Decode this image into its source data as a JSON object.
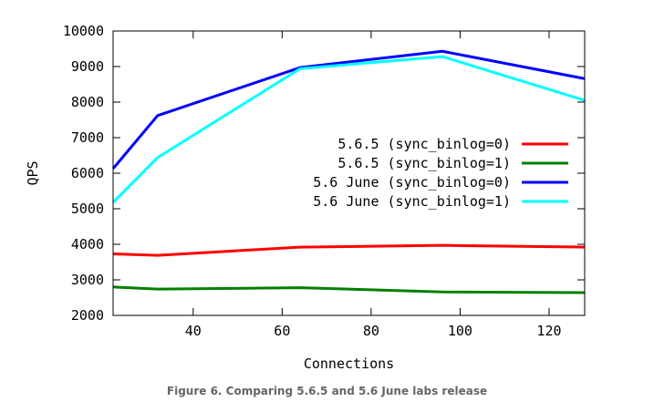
{
  "chart_data": {
    "type": "line",
    "caption": "Figure 6. Comparing 5.6.5 and 5.6 June labs release",
    "xlabel": "Connections",
    "ylabel": "QPS",
    "xlim": [
      22,
      128
    ],
    "ylim": [
      2000,
      10000
    ],
    "xticks": [
      40,
      60,
      80,
      100,
      120
    ],
    "yticks": [
      2000,
      3000,
      4000,
      5000,
      6000,
      7000,
      8000,
      9000,
      10000
    ],
    "grid": false,
    "legend_position": "right",
    "x": [
      22,
      32,
      64,
      96,
      128
    ],
    "series": [
      {
        "name": "5.6.5 (sync_binlog=0)",
        "color": "#ff0000",
        "values": [
          3730,
          3690,
          3920,
          3970,
          3920
        ]
      },
      {
        "name": "5.6.5 (sync_binlog=1)",
        "color": "#008000",
        "values": [
          2800,
          2740,
          2780,
          2660,
          2640
        ]
      },
      {
        "name": "5.6 June (sync_binlog=0)",
        "color": "#0000ff",
        "values": [
          6130,
          7620,
          8970,
          9430,
          8660
        ]
      },
      {
        "name": "5.6 June (sync_binlog=1)",
        "color": "#00ffff",
        "values": [
          5180,
          6440,
          8940,
          9280,
          8050
        ]
      }
    ]
  }
}
